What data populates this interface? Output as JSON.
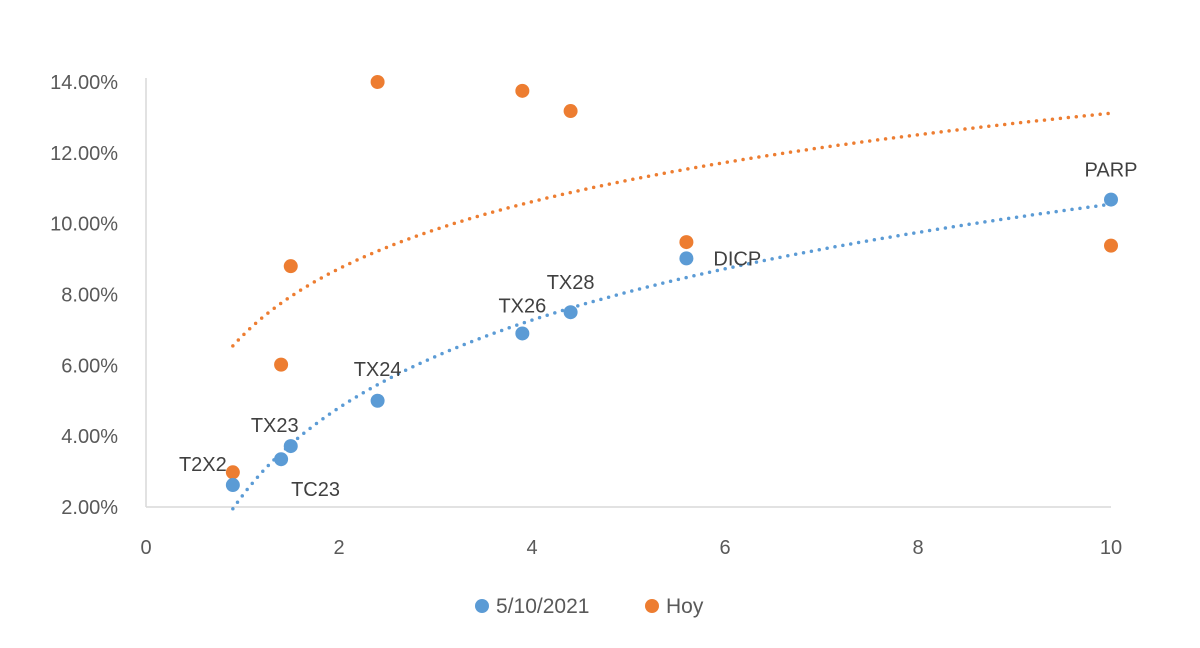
{
  "chart_data": {
    "type": "scatter",
    "title": "",
    "xlabel": "",
    "ylabel": "",
    "xlim": [
      0,
      10
    ],
    "ylim": [
      0.02,
      0.14
    ],
    "x_ticks": [
      0,
      2,
      4,
      6,
      8,
      10
    ],
    "x_tick_labels": [
      "0",
      "2",
      "4",
      "6",
      "8",
      "10"
    ],
    "y_ticks": [
      0.02,
      0.04,
      0.06,
      0.08,
      0.1,
      0.12,
      0.14
    ],
    "y_tick_labels": [
      "2.00%",
      "4.00%",
      "6.00%",
      "8.00%",
      "10.00%",
      "12.00%",
      "14.00%"
    ],
    "grid": false,
    "legend_position": "bottom",
    "series": [
      {
        "name": "5/10/2021",
        "color": "#5B9BD5",
        "points": [
          {
            "x": 0.9,
            "y": 0.0262,
            "label": "T2X2"
          },
          {
            "x": 1.4,
            "y": 0.0335,
            "label": "TC23"
          },
          {
            "x": 1.5,
            "y": 0.0372,
            "label": "TX23"
          },
          {
            "x": 2.4,
            "y": 0.05,
            "label": "TX24"
          },
          {
            "x": 3.9,
            "y": 0.069,
            "label": "TX26"
          },
          {
            "x": 4.4,
            "y": 0.075,
            "label": "TX28"
          },
          {
            "x": 5.6,
            "y": 0.0902,
            "label": "DICP"
          },
          {
            "x": 10.0,
            "y": 0.1068,
            "label": "PARP"
          }
        ],
        "trendline": {
          "type": "logarithmic",
          "x_range": [
            0.9,
            10.0
          ],
          "y_range": [
            0.0195,
            0.1055
          ]
        }
      },
      {
        "name": "Hoy",
        "color": "#ED7D31",
        "points": [
          {
            "x": 0.9,
            "y": 0.0298
          },
          {
            "x": 1.4,
            "y": 0.0602
          },
          {
            "x": 1.5,
            "y": 0.088
          },
          {
            "x": 2.4,
            "y": 0.14
          },
          {
            "x": 3.9,
            "y": 0.1375
          },
          {
            "x": 4.4,
            "y": 0.1318
          },
          {
            "x": 5.6,
            "y": 0.0948
          },
          {
            "x": 10.0,
            "y": 0.0938
          }
        ],
        "trendline": {
          "type": "logarithmic",
          "x_range": [
            0.9,
            10.0
          ],
          "y_range": [
            0.0655,
            0.1312
          ]
        }
      }
    ]
  }
}
